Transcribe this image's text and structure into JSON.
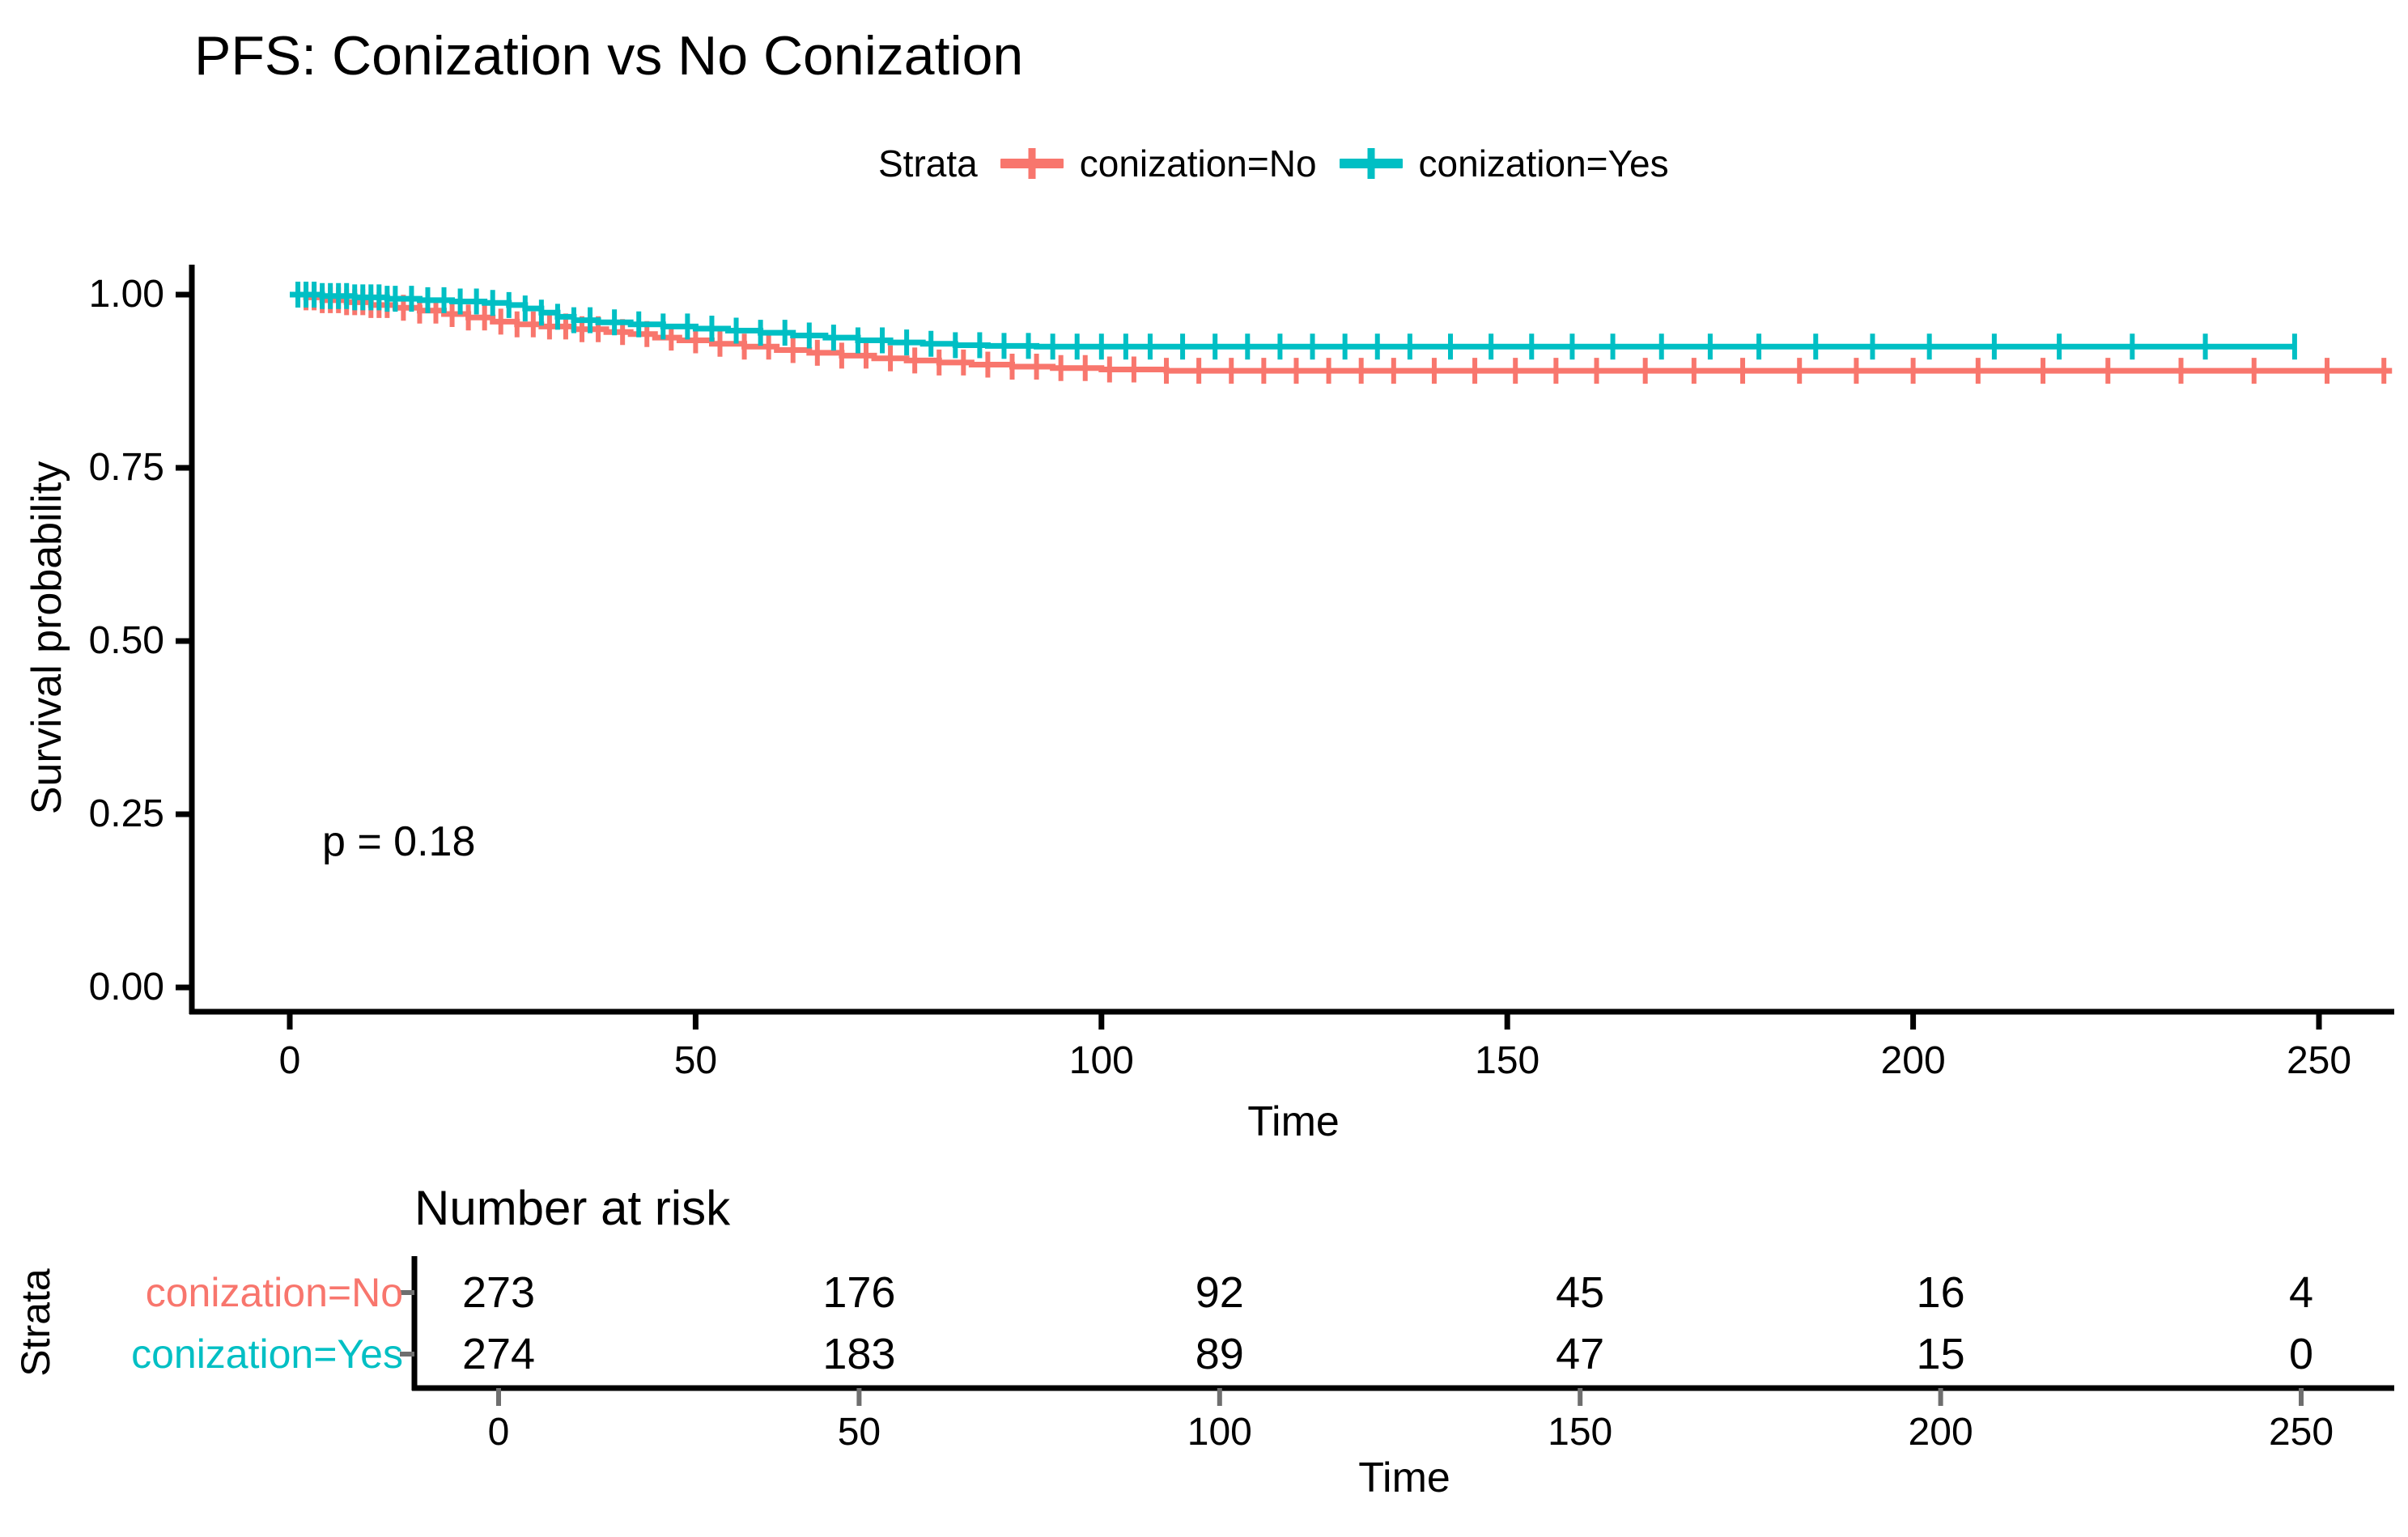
{
  "title": "PFS: Conization vs No Conization",
  "legend": {
    "title": "Strata",
    "items": [
      {
        "label": "conization=No",
        "color": "#F8766D"
      },
      {
        "label": "conization=Yes",
        "color": "#00BFC4"
      }
    ]
  },
  "main_plot": {
    "y_axis_label": "Survival probability",
    "x_axis_label": "Time",
    "y_tick_labels": [
      "1.00",
      "0.75",
      "0.50",
      "0.25",
      "0.00"
    ],
    "x_tick_labels": [
      "0",
      "50",
      "100",
      "150",
      "200",
      "250"
    ],
    "p_value_label": "p = 0.18"
  },
  "risk_table": {
    "title": "Number at risk",
    "strata_axis_label": "Strata",
    "x_axis_label": "Time",
    "x_tick_labels": [
      "0",
      "50",
      "100",
      "150",
      "200",
      "250"
    ],
    "rows": [
      {
        "label": "conization=No",
        "color": "#F8766D",
        "counts": [
          "273",
          "176",
          "92",
          "45",
          "16",
          "4"
        ]
      },
      {
        "label": "conization=Yes",
        "color": "#00BFC4",
        "counts": [
          "274",
          "183",
          "89",
          "47",
          "15",
          "0"
        ]
      }
    ]
  },
  "chart_data": {
    "type": "line",
    "subtype": "kaplan_meier_step",
    "title": "PFS: Conization vs No Conization",
    "xlabel": "Time",
    "ylabel": "Survival probability",
    "xlim": [
      0,
      262
    ],
    "ylim": [
      0,
      1
    ],
    "x_ticks": [
      0,
      50,
      100,
      150,
      200,
      250
    ],
    "y_ticks": [
      1.0,
      0.75,
      0.5,
      0.25,
      0.0
    ],
    "p_value": "p = 0.18",
    "legend_position": "top",
    "grid": false,
    "series": [
      {
        "name": "conization=No",
        "color": "#F8766D",
        "end_time": 259,
        "steps": [
          [
            0,
            1.0
          ],
          [
            2,
            0.996
          ],
          [
            4,
            0.992
          ],
          [
            7,
            0.989
          ],
          [
            10,
            0.985
          ],
          [
            13,
            0.981
          ],
          [
            16,
            0.977
          ],
          [
            19,
            0.972
          ],
          [
            22,
            0.967
          ],
          [
            25,
            0.961
          ],
          [
            28,
            0.957
          ],
          [
            31,
            0.954
          ],
          [
            35,
            0.95
          ],
          [
            39,
            0.946
          ],
          [
            42,
            0.943
          ],
          [
            45,
            0.938
          ],
          [
            48,
            0.934
          ],
          [
            52,
            0.929
          ],
          [
            56,
            0.925
          ],
          [
            60,
            0.92
          ],
          [
            64,
            0.916
          ],
          [
            68,
            0.912
          ],
          [
            72,
            0.908
          ],
          [
            76,
            0.905
          ],
          [
            80,
            0.902
          ],
          [
            84,
            0.899
          ],
          [
            89,
            0.896
          ],
          [
            94,
            0.894
          ],
          [
            100,
            0.892
          ],
          [
            108,
            0.89
          ]
        ],
        "censor_times": [
          1,
          2,
          3,
          4,
          5,
          6,
          7,
          8,
          9,
          10,
          11,
          12,
          14,
          16,
          18,
          20,
          22,
          24,
          26,
          28,
          30,
          32,
          34,
          36,
          38,
          41,
          44,
          47,
          50,
          53,
          56,
          59,
          62,
          65,
          68,
          71,
          74,
          77,
          80,
          83,
          86,
          89,
          92,
          95,
          98,
          101,
          104,
          108,
          112,
          116,
          120,
          124,
          128,
          132,
          136,
          141,
          146,
          151,
          156,
          161,
          167,
          173,
          179,
          186,
          193,
          200,
          208,
          216,
          224,
          233,
          242,
          251,
          258
        ]
      },
      {
        "name": "conization=Yes",
        "color": "#00BFC4",
        "end_time": 247,
        "steps": [
          [
            0,
            1.0
          ],
          [
            4,
            0.998
          ],
          [
            8,
            0.996
          ],
          [
            12,
            0.994
          ],
          [
            16,
            0.992
          ],
          [
            20,
            0.99
          ],
          [
            24,
            0.988
          ],
          [
            27,
            0.985
          ],
          [
            29,
            0.98
          ],
          [
            31,
            0.974
          ],
          [
            33,
            0.968
          ],
          [
            35,
            0.963
          ],
          [
            38,
            0.96
          ],
          [
            42,
            0.957
          ],
          [
            46,
            0.954
          ],
          [
            50,
            0.951
          ],
          [
            54,
            0.948
          ],
          [
            58,
            0.945
          ],
          [
            62,
            0.941
          ],
          [
            66,
            0.938
          ],
          [
            70,
            0.934
          ],
          [
            74,
            0.931
          ],
          [
            78,
            0.929
          ],
          [
            82,
            0.927
          ],
          [
            86,
            0.926
          ],
          [
            92,
            0.925
          ]
        ],
        "censor_times": [
          1,
          2,
          3,
          4,
          5,
          6,
          7,
          8,
          9,
          10,
          11,
          12,
          13,
          15,
          17,
          19,
          21,
          23,
          25,
          27,
          29,
          31,
          33,
          35,
          37,
          40,
          43,
          46,
          49,
          52,
          55,
          58,
          61,
          64,
          67,
          70,
          73,
          76,
          79,
          82,
          85,
          88,
          91,
          94,
          97,
          100,
          103,
          106,
          110,
          114,
          118,
          122,
          126,
          130,
          134,
          138,
          143,
          148,
          153,
          158,
          163,
          169,
          175,
          181,
          188,
          195,
          202,
          210,
          218,
          227,
          236,
          247
        ]
      }
    ],
    "number_at_risk": {
      "times": [
        0,
        50,
        100,
        150,
        200,
        250
      ],
      "series": [
        {
          "name": "conization=No",
          "counts": [
            273,
            176,
            92,
            45,
            16,
            4
          ]
        },
        {
          "name": "conization=Yes",
          "counts": [
            274,
            183,
            89,
            47,
            15,
            0
          ]
        }
      ]
    }
  }
}
